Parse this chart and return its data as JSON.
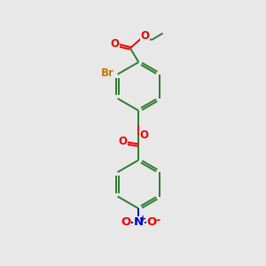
{
  "background_color": "#e8e8e8",
  "bond_color": "#2d7d2d",
  "oxygen_color": "#ee0000",
  "nitrogen_color": "#0000cc",
  "bromine_color": "#cc7700",
  "line_width": 1.4,
  "double_sep": 0.06,
  "figsize": [
    3.0,
    3.0
  ],
  "dpi": 100,
  "font_size": 8.5,
  "xlim": [
    0,
    10
  ],
  "ylim": [
    0,
    14
  ]
}
